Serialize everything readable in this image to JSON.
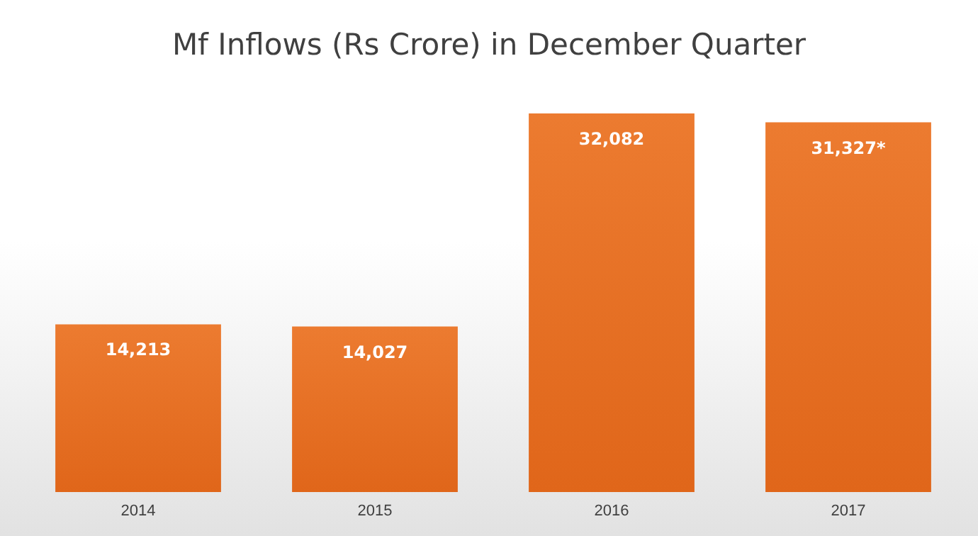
{
  "chart_data": {
    "type": "bar",
    "title": "Mf Inflows (Rs Crore) in December Quarter",
    "categories": [
      "2014",
      "2015",
      "2016",
      "2017"
    ],
    "values": [
      14213,
      14027,
      32082,
      31327
    ],
    "value_labels": [
      "14,213",
      "14,027",
      "32,082",
      "31,327*"
    ],
    "color": "#ec7b30"
  }
}
